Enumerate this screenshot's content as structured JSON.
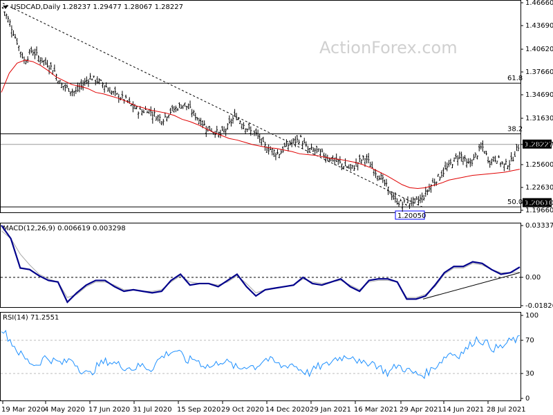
{
  "header": {
    "symbol_line": "USDCAD,Daily",
    "ohlc": "1.28237 1.29477 1.28067 1.28227",
    "macd_label": "MACD(12,26,9) 0.006619 0.003298",
    "rsi_label": "RSI(14) 71.2551",
    "watermark": "ActionForex.com"
  },
  "colors": {
    "price_bars": "#000000",
    "sma": "#e00000",
    "macd_line": "#00008b",
    "signal_line": "#a8a8a8",
    "rsi_line": "#1e90ff",
    "hlines": "#000000",
    "current_price_hl": "#000000"
  },
  "chart_data": [
    {
      "type": "candlestick",
      "title": "USDCAD,Daily",
      "ylim": [
        1.1966,
        1.4666
      ],
      "y_ticks": [
        "1.46660",
        "1.43690",
        "1.40620",
        "1.37660",
        "1.34690",
        "1.31630",
        "1.28227",
        "1.25600",
        "1.22630",
        "1.20610",
        "1.19660"
      ],
      "x_ticks": [
        "19 Mar 2020",
        "4 May 2020",
        "17 Jun 2020",
        "31 Jul 2020",
        "15 Sep 2020",
        "29 Oct 2020",
        "14 Dec 2020",
        "29 Jan 2021",
        "16 Mar 2021",
        "29 Apr 2021",
        "14 Jun 2021",
        "28 Jul 2021"
      ],
      "fib_levels": [
        {
          "label": "61.8",
          "value": 1.362
        },
        {
          "label": "38.2",
          "value": 1.296
        },
        {
          "label": "50.0",
          "value": 1.201
        }
      ],
      "current_price": {
        "label": "1.28227",
        "value": 1.28227
      },
      "last_label": {
        "label": "1.20610",
        "value": 1.2061
      },
      "low_label": {
        "label": "1.20050",
        "value": 1.2005
      },
      "trendline": [
        {
          "x": "19 Mar 2020",
          "y": 1.466
        },
        {
          "x": "29 Apr 2021",
          "y": 1.2005
        }
      ],
      "series": [
        {
          "name": "price_close",
          "values": [
            1.46,
            1.44,
            1.415,
            1.39,
            1.405,
            1.395,
            1.388,
            1.38,
            1.36,
            1.355,
            1.35,
            1.36,
            1.37,
            1.365,
            1.36,
            1.35,
            1.345,
            1.34,
            1.33,
            1.325,
            1.328,
            1.32,
            1.315,
            1.325,
            1.33,
            1.335,
            1.325,
            1.315,
            1.305,
            1.3,
            1.295,
            1.305,
            1.32,
            1.31,
            1.3,
            1.295,
            1.28,
            1.275,
            1.27,
            1.28,
            1.285,
            1.29,
            1.275,
            1.275,
            1.27,
            1.265,
            1.26,
            1.255,
            1.25,
            1.26,
            1.265,
            1.25,
            1.24,
            1.225,
            1.21,
            1.205,
            1.207,
            1.208,
            1.215,
            1.23,
            1.24,
            1.25,
            1.26,
            1.27,
            1.255,
            1.265,
            1.28,
            1.26,
            1.265,
            1.255,
            1.26,
            1.28
          ]
        },
        {
          "name": "sma",
          "values": [
            1.35,
            1.375,
            1.388,
            1.392,
            1.39,
            1.385,
            1.378,
            1.37,
            1.365,
            1.36,
            1.358,
            1.355,
            1.35,
            1.348,
            1.345,
            1.342,
            1.338,
            1.333,
            1.33,
            1.327,
            1.325,
            1.323,
            1.32,
            1.315,
            1.312,
            1.308,
            1.303,
            1.298,
            1.294,
            1.29,
            1.288,
            1.285,
            1.282,
            1.28,
            1.278,
            1.277,
            1.275,
            1.273,
            1.27,
            1.269,
            1.268,
            1.266,
            1.264,
            1.263,
            1.261,
            1.259,
            1.256,
            1.252,
            1.247,
            1.242,
            1.236,
            1.23,
            1.226,
            1.225,
            1.226,
            1.229,
            1.232,
            1.236,
            1.238,
            1.24,
            1.242,
            1.243,
            1.244,
            1.245,
            1.246,
            1.248,
            1.25
          ]
        }
      ]
    },
    {
      "type": "line",
      "title": "MACD(12,26,9) 0.006619 0.003298",
      "ylim": [
        -0.0183,
        0.0334
      ],
      "y_ticks": [
        "0.03337",
        "0.00",
        "-0.018262"
      ],
      "trendline": [
        {
          "x": "29 Apr 2021",
          "y": -0.014
        },
        {
          "x": "end",
          "y": 0.003
        }
      ],
      "series": [
        {
          "name": "MACD",
          "values": [
            0.0335,
            0.025,
            0.006,
            0.005,
            0.001,
            -0.002,
            -0.003,
            -0.016,
            -0.01,
            -0.005,
            -0.002,
            -0.002,
            -0.006,
            -0.009,
            -0.008,
            -0.009,
            -0.01,
            -0.009,
            -0.002,
            0.002,
            -0.005,
            -0.004,
            -0.004,
            -0.006,
            -0.002,
            0.002,
            -0.006,
            -0.012,
            -0.008,
            -0.007,
            -0.006,
            -0.005,
            0.0,
            -0.004,
            -0.005,
            -0.003,
            -0.001,
            -0.006,
            -0.009,
            -0.002,
            -0.001,
            -0.001,
            -0.003,
            -0.014,
            -0.014,
            -0.012,
            -0.005,
            0.003,
            0.007,
            0.007,
            0.01,
            0.009,
            0.005,
            0.002,
            0.003,
            0.0066
          ]
        },
        {
          "name": "Signal",
          "values": [
            0.03,
            0.025,
            0.015,
            0.008,
            0.002,
            -0.001,
            -0.003,
            -0.013,
            -0.011,
            -0.006,
            -0.003,
            -0.003,
            -0.005,
            -0.008,
            -0.008,
            -0.009,
            -0.009,
            -0.008,
            -0.003,
            0.001,
            -0.003,
            -0.004,
            -0.004,
            -0.005,
            -0.003,
            0.001,
            -0.004,
            -0.01,
            -0.008,
            -0.007,
            -0.006,
            -0.005,
            -0.001,
            -0.003,
            -0.004,
            -0.003,
            -0.002,
            -0.005,
            -0.008,
            -0.003,
            -0.002,
            -0.002,
            -0.003,
            -0.013,
            -0.013,
            -0.011,
            -0.006,
            0.002,
            0.006,
            0.006,
            0.009,
            0.008,
            0.005,
            0.003,
            0.003,
            0.0033
          ]
        }
      ]
    },
    {
      "type": "line",
      "title": "RSI(14) 71.2551",
      "ylim": [
        0,
        100
      ],
      "y_ticks": [
        "100",
        "70",
        "30",
        "0"
      ],
      "reference_levels": [
        70,
        30
      ],
      "series": [
        {
          "name": "RSI",
          "values": [
            85,
            70,
            55,
            45,
            40,
            50,
            45,
            42,
            48,
            35,
            28,
            40,
            45,
            42,
            38,
            36,
            40,
            35,
            48,
            55,
            58,
            45,
            48,
            40,
            38,
            46,
            42,
            35,
            40,
            38,
            48,
            44,
            38,
            42,
            35,
            30,
            38,
            40,
            48,
            50,
            52,
            40,
            45,
            38,
            30,
            40,
            35,
            30,
            28,
            35,
            45,
            55,
            52,
            60,
            72,
            68,
            60,
            62,
            70,
            71
          ]
        }
      ]
    }
  ]
}
